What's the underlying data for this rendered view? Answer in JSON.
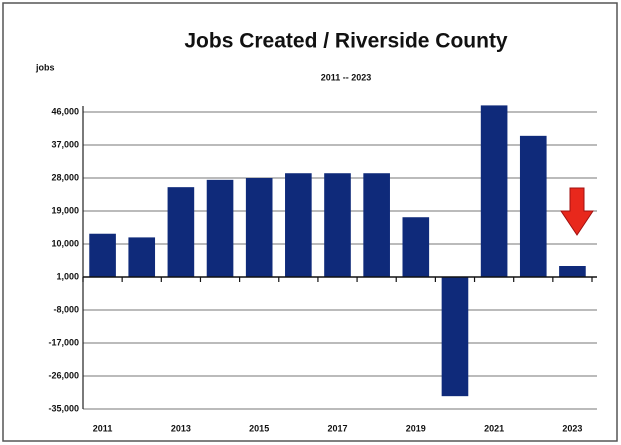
{
  "chart_data": {
    "type": "bar",
    "title": "Jobs Created / Riverside County",
    "subtitle": "2011 -- 2023",
    "y_label": "jobs",
    "categories": [
      "2011",
      null,
      "2013",
      null,
      "2015",
      null,
      "2017",
      null,
      "2019",
      null,
      "2021",
      null,
      "2023"
    ],
    "values": [
      12800,
      11800,
      25500,
      27500,
      28000,
      29300,
      29300,
      29300,
      17300,
      -31500,
      47800,
      39500,
      4000
    ],
    "color": "#0f2a7a",
    "baseline": 1000,
    "ylim": [
      -35000,
      46000
    ],
    "yticks": [
      {
        "value": 46000,
        "label": "46,000"
      },
      {
        "value": 37000,
        "label": "37,000"
      },
      {
        "value": 28000,
        "label": "28,000"
      },
      {
        "value": 19000,
        "label": "19,000"
      },
      {
        "value": 10000,
        "label": "10,000"
      },
      {
        "value": 1000,
        "label": "1,000"
      },
      {
        "value": -8000,
        "label": "-8,000"
      },
      {
        "value": -17000,
        "label": "-17,000"
      },
      {
        "value": -26000,
        "label": "-26,000"
      },
      {
        "value": -35000,
        "label": "-35,000"
      }
    ],
    "grid": true
  }
}
